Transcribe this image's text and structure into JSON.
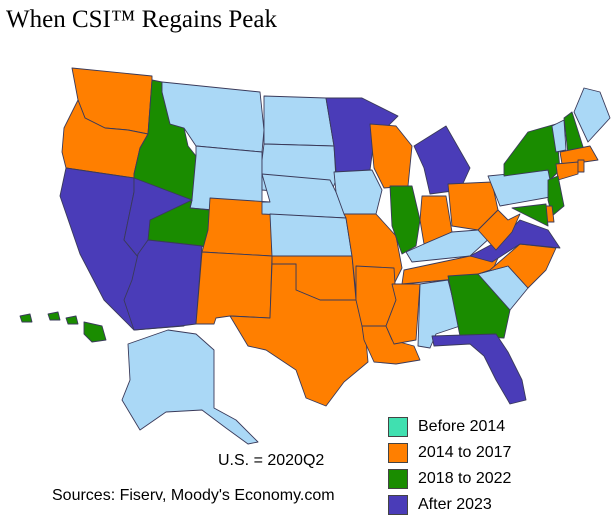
{
  "title": "When CSI™ Regains Peak",
  "note": "U.S. = 2020Q2",
  "sources": "Sources: Fiserv, Moody's Economy.com",
  "legend": [
    {
      "label": "Before 2014",
      "color": "#40e0b0"
    },
    {
      "label": "2014 to 2017",
      "color": "#ff7f00"
    },
    {
      "label": "2018 to 2022",
      "color": "#1a8c00"
    },
    {
      "label": "After 2023",
      "color": "#4a3cb8"
    }
  ],
  "no_data_color": "#aad8f6",
  "states": {
    "WA": "2014 to 2017",
    "OR": "2014 to 2017",
    "ID": "2018 to 2022",
    "MT": "none",
    "WY": "none",
    "CA": "After 2023",
    "NV": "After 2023",
    "UT": "2018 to 2022",
    "AZ": "After 2023",
    "CO": "2014 to 2017",
    "NM": "2014 to 2017",
    "ND": "none",
    "SD": "none",
    "NE": "none",
    "KS": "none",
    "OK": "2014 to 2017",
    "TX": "2014 to 2017",
    "MN": "After 2023",
    "IA": "none",
    "MO": "2014 to 2017",
    "AR": "2014 to 2017",
    "LA": "2014 to 2017",
    "WI": "2014 to 2017",
    "IL": "2018 to 2022",
    "MI": "After 2023",
    "IN": "2014 to 2017",
    "OH": "2014 to 2017",
    "KY": "none",
    "TN": "2014 to 2017",
    "MS": "2014 to 2017",
    "AL": "none",
    "GA": "2018 to 2022",
    "FL": "After 2023",
    "SC": "none",
    "NC": "2014 to 2017",
    "VA": "After 2023",
    "WV": "2014 to 2017",
    "PA": "none",
    "NY": "2018 to 2022",
    "VT": "none",
    "NH": "2018 to 2022",
    "ME": "none",
    "MA": "2014 to 2017",
    "CT": "2014 to 2017",
    "RI": "2014 to 2017",
    "NJ": "2018 to 2022",
    "DE": "2014 to 2017",
    "MD": "2018 to 2022",
    "AK": "none",
    "HI": "2018 to 2022"
  }
}
